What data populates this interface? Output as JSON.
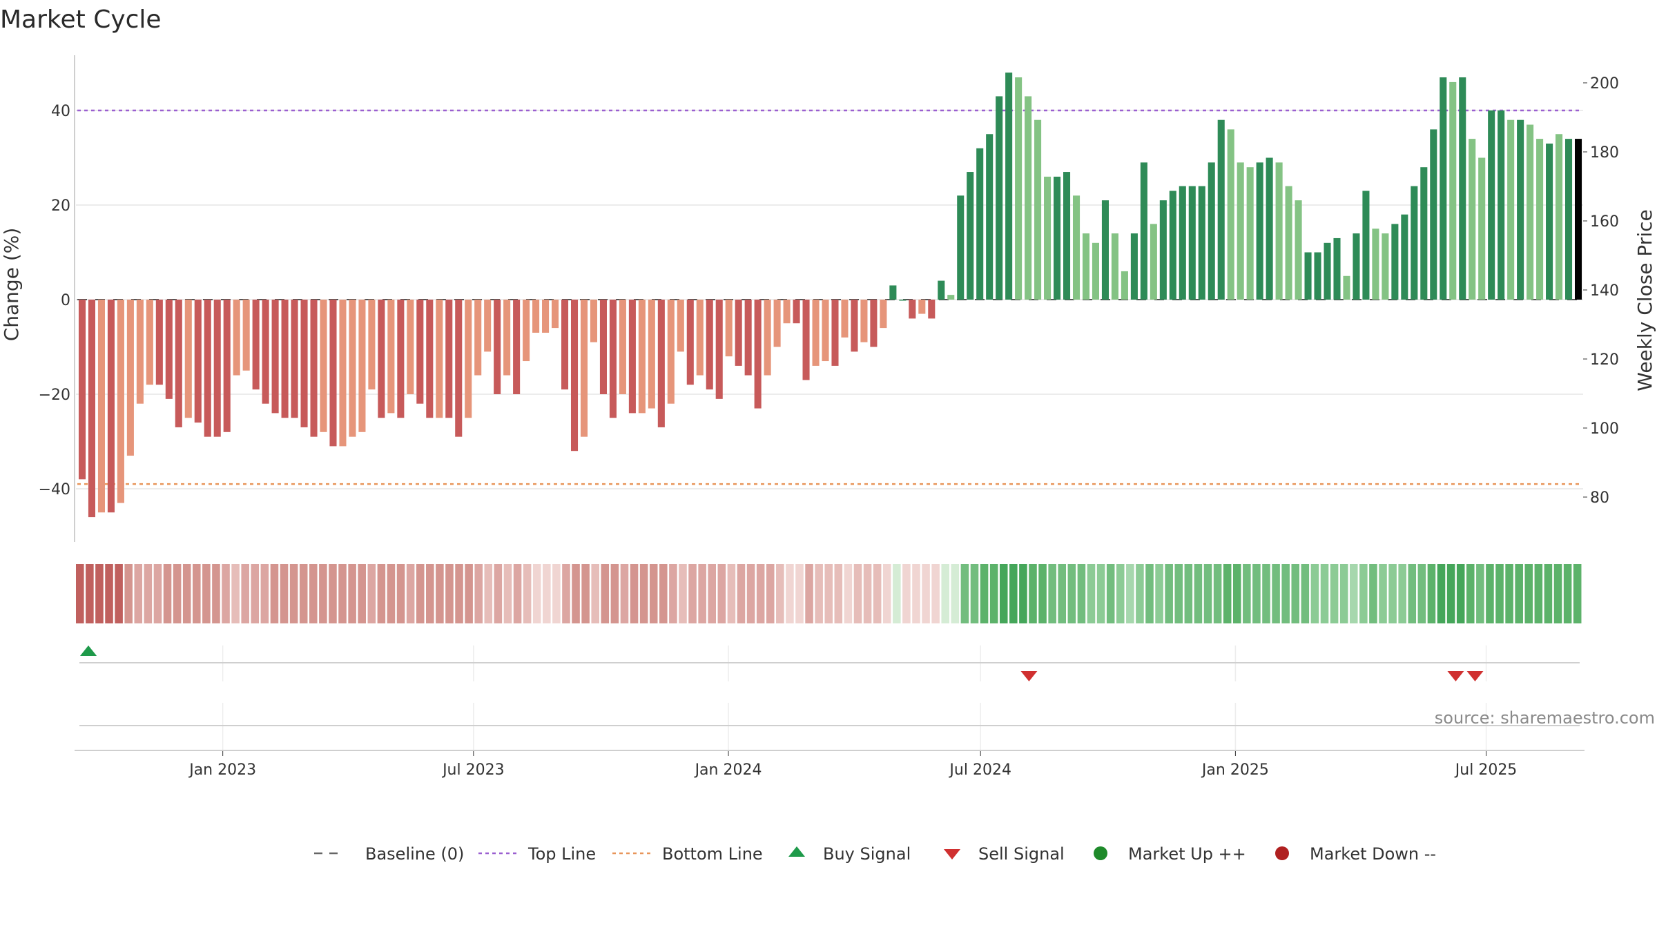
{
  "chart_data": {
    "type": "bar",
    "title": "Market Cycle",
    "ylabel": "Change (%)",
    "y2label": "Weekly Close Price",
    "ylim": [
      -52,
      52
    ],
    "y2lim": [
      66,
      216
    ],
    "yticks": [
      40,
      20,
      0,
      -20,
      -40
    ],
    "ytick_labels": [
      "40",
      "20",
      "0",
      "−20",
      "−40"
    ],
    "y2ticks": [
      200,
      180,
      160,
      140,
      120,
      100,
      80
    ],
    "top_line": 40,
    "bottom_line": -39,
    "baseline": 0,
    "xaxis": {
      "start_date": "2022-09-19",
      "end_date": "2025-09-08",
      "ticks": [
        {
          "date": "2023-01-01",
          "label": "Jan 2023"
        },
        {
          "date": "2023-07-01",
          "label": "Jul 2023"
        },
        {
          "date": "2024-01-01",
          "label": "Jan 2024"
        },
        {
          "date": "2024-07-01",
          "label": "Jul 2024"
        },
        {
          "date": "2025-01-01",
          "label": "Jan 2025"
        },
        {
          "date": "2025-07-01",
          "label": "Jul 2025"
        }
      ]
    },
    "change_values": [
      -38,
      -46,
      -45,
      -45,
      -43,
      -33,
      -22,
      -18,
      -18,
      -21,
      -27,
      -25,
      -26,
      -29,
      -29,
      -28,
      -16,
      -15,
      -19,
      -22,
      -24,
      -25,
      -25,
      -27,
      -29,
      -28,
      -31,
      -31,
      -29,
      -28,
      -19,
      -25,
      -24,
      -25,
      -20,
      -22,
      -25,
      -25,
      -25,
      -29,
      -25,
      -16,
      -11,
      -20,
      -16,
      -20,
      -13,
      -7,
      -7,
      -6,
      -19,
      -32,
      -29,
      -9,
      -20,
      -25,
      -20,
      -24,
      -24,
      -23,
      -27,
      -22,
      -11,
      -18,
      -16,
      -19,
      -21,
      -12,
      -14,
      -16,
      -23,
      -16,
      -10,
      -5,
      -5,
      -17,
      -14,
      -13,
      -14,
      -8,
      -11,
      -9,
      -10,
      -6,
      3,
      0,
      -4,
      -3,
      -4,
      4,
      1,
      22,
      27,
      32,
      35,
      43,
      48,
      47,
      43,
      38,
      26,
      26,
      27,
      22,
      14,
      12,
      21,
      14,
      6,
      14,
      29,
      16,
      21,
      23,
      24,
      24,
      24,
      29,
      38,
      36,
      29,
      28,
      29,
      30,
      29,
      24,
      21,
      10,
      10,
      12,
      13,
      5,
      14,
      23,
      15,
      14,
      16,
      18,
      24,
      28,
      36,
      47,
      46,
      47,
      34,
      30,
      40,
      40,
      38,
      38,
      37,
      34,
      33,
      35,
      34,
      34
    ],
    "bar_colors": [
      "#c75a5a",
      "#c75a5a",
      "#e6957a",
      "#c75a5a",
      "#e6957a",
      "#e6957a",
      "#e6957a",
      "#e6957a",
      "#c75a5a",
      "#c75a5a",
      "#c75a5a",
      "#e6957a",
      "#c75a5a",
      "#c75a5a",
      "#c75a5a",
      "#c75a5a",
      "#e6957a",
      "#e6957a",
      "#c75a5a",
      "#c75a5a",
      "#c75a5a",
      "#c75a5a",
      "#c75a5a",
      "#c75a5a",
      "#c75a5a",
      "#e6957a",
      "#c75a5a",
      "#e6957a",
      "#e6957a",
      "#e6957a",
      "#e6957a",
      "#c75a5a",
      "#e6957a",
      "#c75a5a",
      "#e6957a",
      "#c75a5a",
      "#c75a5a",
      "#e6957a",
      "#c75a5a",
      "#c75a5a",
      "#e6957a",
      "#e6957a",
      "#e6957a",
      "#c75a5a",
      "#e6957a",
      "#c75a5a",
      "#e6957a",
      "#e6957a",
      "#e6957a",
      "#e6957a",
      "#c75a5a",
      "#c75a5a",
      "#e6957a",
      "#e6957a",
      "#c75a5a",
      "#c75a5a",
      "#e6957a",
      "#c75a5a",
      "#e6957a",
      "#e6957a",
      "#c75a5a",
      "#e6957a",
      "#e6957a",
      "#c75a5a",
      "#e6957a",
      "#c75a5a",
      "#c75a5a",
      "#e6957a",
      "#c75a5a",
      "#c75a5a",
      "#c75a5a",
      "#e6957a",
      "#e6957a",
      "#e6957a",
      "#c75a5a",
      "#c75a5a",
      "#e6957a",
      "#e6957a",
      "#c75a5a",
      "#e6957a",
      "#c75a5a",
      "#e6957a",
      "#c75a5a",
      "#e6957a",
      "#2e8b57",
      "#2e8b57",
      "#c75a5a",
      "#e6957a",
      "#c75a5a",
      "#2e8b57",
      "#84c384",
      "#2e8b57",
      "#2e8b57",
      "#2e8b57",
      "#2e8b57",
      "#2e8b57",
      "#2e8b57",
      "#84c384",
      "#84c384",
      "#84c384",
      "#84c384",
      "#2e8b57",
      "#2e8b57",
      "#84c384",
      "#84c384",
      "#84c384",
      "#2e8b57",
      "#84c384",
      "#84c384",
      "#2e8b57",
      "#2e8b57",
      "#84c384",
      "#2e8b57",
      "#2e8b57",
      "#2e8b57",
      "#2e8b57",
      "#2e8b57",
      "#2e8b57",
      "#2e8b57",
      "#84c384",
      "#84c384",
      "#84c384",
      "#2e8b57",
      "#2e8b57",
      "#84c384",
      "#84c384",
      "#84c384",
      "#2e8b57",
      "#2e8b57",
      "#2e8b57",
      "#2e8b57",
      "#84c384",
      "#2e8b57",
      "#2e8b57",
      "#84c384",
      "#84c384",
      "#2e8b57",
      "#2e8b57",
      "#2e8b57",
      "#2e8b57",
      "#2e8b57",
      "#2e8b57",
      "#84c384",
      "#2e8b57",
      "#84c384",
      "#84c384",
      "#2e8b57",
      "#2e8b57",
      "#84c384",
      "#2e8b57",
      "#84c384",
      "#84c384",
      "#2e8b57",
      "#84c384",
      "#2e8b57"
    ],
    "strip_colors": [
      "#c0605e",
      "#c0605e",
      "#c0605e",
      "#c0605e",
      "#c0605e",
      "#d4958f",
      "#dca6a2",
      "#dca6a2",
      "#dca6a2",
      "#d4958f",
      "#d4958f",
      "#d4958f",
      "#d4958f",
      "#d4958f",
      "#d4958f",
      "#dca6a2",
      "#e6bdb9",
      "#dca6a2",
      "#dca6a2",
      "#dca6a2",
      "#d4958f",
      "#d4958f",
      "#d4958f",
      "#d4958f",
      "#d4958f",
      "#d4958f",
      "#d4958f",
      "#d4958f",
      "#d4958f",
      "#d4958f",
      "#dca6a2",
      "#d4958f",
      "#d4958f",
      "#d4958f",
      "#dca6a2",
      "#d4958f",
      "#d4958f",
      "#d4958f",
      "#d4958f",
      "#d4958f",
      "#d4958f",
      "#dca6a2",
      "#e6bdb9",
      "#dca6a2",
      "#e6bdb9",
      "#dca6a2",
      "#e6bdb9",
      "#f0d5d2",
      "#f0d5d2",
      "#f0d5d2",
      "#dca6a2",
      "#d4958f",
      "#d4958f",
      "#e6bdb9",
      "#d4958f",
      "#d4958f",
      "#dca6a2",
      "#d4958f",
      "#d4958f",
      "#d4958f",
      "#d4958f",
      "#dca6a2",
      "#e6bdb9",
      "#dca6a2",
      "#dca6a2",
      "#dca6a2",
      "#dca6a2",
      "#e6bdb9",
      "#dca6a2",
      "#dca6a2",
      "#dca6a2",
      "#dca6a2",
      "#e6bdb9",
      "#f0d5d2",
      "#f0d5d2",
      "#dca6a2",
      "#e6bdb9",
      "#e6bdb9",
      "#e6bdb9",
      "#f0d5d2",
      "#e6bdb9",
      "#e6bdb9",
      "#e6bdb9",
      "#f0d5d2",
      "#d5ecd5",
      "#f0d5d2",
      "#f0d5d2",
      "#f0d5d2",
      "#f0d5d2",
      "#d5ecd5",
      "#d5ecd5",
      "#72bd7e",
      "#72bd7e",
      "#5cb26a",
      "#5cb26a",
      "#45a65a",
      "#45a65a",
      "#45a65a",
      "#5cb26a",
      "#5cb26a",
      "#72bd7e",
      "#72bd7e",
      "#72bd7e",
      "#72bd7e",
      "#8ccb95",
      "#8ccb95",
      "#72bd7e",
      "#8ccb95",
      "#a6d7ad",
      "#8ccb95",
      "#72bd7e",
      "#8ccb95",
      "#72bd7e",
      "#72bd7e",
      "#72bd7e",
      "#72bd7e",
      "#72bd7e",
      "#72bd7e",
      "#5cb26a",
      "#5cb26a",
      "#72bd7e",
      "#72bd7e",
      "#72bd7e",
      "#72bd7e",
      "#72bd7e",
      "#72bd7e",
      "#72bd7e",
      "#8ccb95",
      "#8ccb95",
      "#8ccb95",
      "#8ccb95",
      "#a6d7ad",
      "#8ccb95",
      "#72bd7e",
      "#8ccb95",
      "#8ccb95",
      "#8ccb95",
      "#72bd7e",
      "#72bd7e",
      "#5cb26a",
      "#45a65a",
      "#45a65a",
      "#45a65a",
      "#5cb26a",
      "#72bd7e",
      "#5cb26a",
      "#5cb26a",
      "#5cb26a",
      "#5cb26a",
      "#5cb26a",
      "#5cb26a",
      "#5cb26a",
      "#5cb26a",
      "#5cb26a",
      "#5cb26a"
    ],
    "buy_signals": [
      "2022-09-26"
    ],
    "sell_signals": [
      "2024-08-05",
      "2025-06-09",
      "2025-06-23"
    ],
    "legend": [
      {
        "label": "Baseline (0)",
        "marker": "dash",
        "color": "#666666"
      },
      {
        "label": "Top Line",
        "marker": "dotted",
        "color": "#9a5fd0"
      },
      {
        "label": "Bottom Line",
        "marker": "dotted",
        "color": "#e8955a"
      },
      {
        "label": "Buy Signal",
        "marker": "triangle-up",
        "color": "#1e9a4a"
      },
      {
        "label": "Sell Signal",
        "marker": "triangle-down",
        "color": "#d03030"
      },
      {
        "label": "Market Up ++",
        "marker": "circle",
        "color": "#1e8a2a"
      },
      {
        "label": "Market Down --",
        "marker": "circle",
        "color": "#b02020"
      }
    ],
    "source": "source: sharemaestro.com",
    "grid": true,
    "legend_position": "bottom"
  }
}
